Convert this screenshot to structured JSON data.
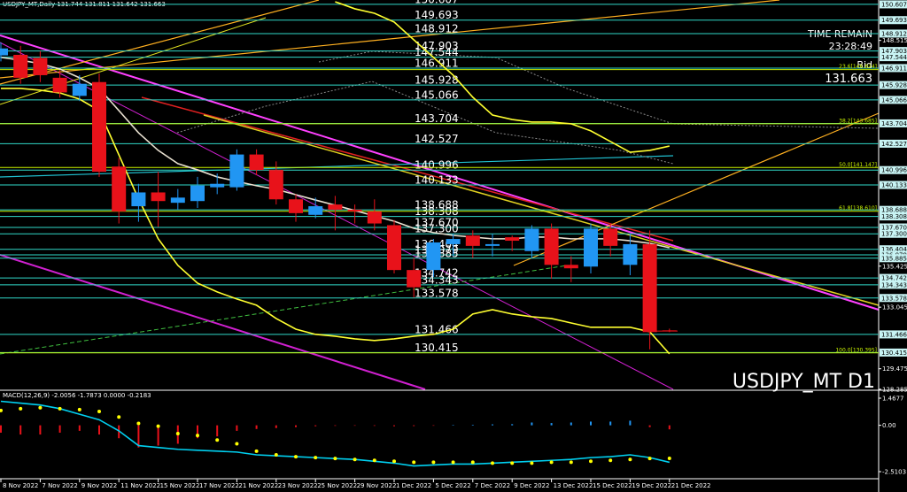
{
  "chart_data": [
    {
      "type": "candlestick",
      "title": "USDJPY_MT,Daily  131.744 131.811 131.642 131.663",
      "watermark": "USDJPY_MT D1",
      "timer_label": "TIME REMAIN",
      "timer": "23:28:49",
      "bid_label": "Bid",
      "bid": 131.663,
      "categories": [
        "8 Nov 2022",
        null,
        "7 Nov 2022",
        null,
        "9 Nov 2022",
        null,
        "11 Nov 2022",
        null,
        "15 Nov 2022",
        null,
        "17 Nov 2022",
        null,
        "21 Nov 2022",
        null,
        "23 Nov 2022",
        null,
        "25 Nov 2022",
        null,
        "29 Nov 2022",
        null,
        "1 Dec 2022",
        null,
        "5 Dec 2022",
        null,
        "7 Dec 2022",
        null,
        "9 Dec 2022",
        null,
        "13 Dec 2022",
        null,
        "15 Dec 2022",
        null,
        "19 Dec 2022",
        null,
        "21 Dec 2022"
      ],
      "open": [
        147.65,
        147.68,
        147.5,
        146.35,
        145.3,
        146.1,
        141.2,
        138.9,
        139.7,
        139.1,
        139.2,
        140.0,
        140.0,
        141.9,
        141.0,
        139.3,
        138.4,
        139.0,
        138.7,
        138.6,
        137.8,
        135.2,
        135.2,
        136.7,
        137.2,
        136.6,
        137.1,
        136.3,
        137.6,
        135.5,
        135.4,
        137.6,
        135.5,
        136.7,
        131.7
      ],
      "high": [
        148.4,
        148.2,
        147.9,
        146.8,
        146.5,
        146.6,
        141.7,
        140.2,
        140.9,
        139.9,
        140.6,
        140.8,
        142.2,
        142.2,
        141.5,
        139.6,
        139.4,
        139.5,
        139.0,
        139.3,
        138.1,
        135.9,
        137.0,
        137.3,
        137.5,
        137.3,
        137.2,
        137.8,
        137.9,
        136.0,
        137.9,
        137.9,
        137.3,
        137.5,
        131.8
      ],
      "low": [
        147.3,
        146.0,
        146.1,
        145.2,
        145.0,
        140.6,
        137.9,
        138.0,
        137.7,
        138.7,
        138.8,
        139.6,
        139.8,
        140.7,
        139.0,
        138.0,
        138.2,
        137.5,
        137.9,
        137.5,
        135.0,
        133.6,
        134.8,
        136.0,
        135.9,
        136.0,
        136.3,
        135.9,
        134.7,
        134.5,
        135.0,
        136.0,
        134.9,
        130.6,
        131.6
      ],
      "close": [
        148.05,
        146.35,
        146.5,
        145.5,
        146.0,
        140.9,
        138.6,
        139.7,
        139.2,
        139.4,
        140.1,
        140.2,
        141.9,
        141.0,
        139.3,
        138.5,
        138.9,
        138.7,
        138.6,
        137.9,
        135.2,
        134.2,
        136.8,
        137.0,
        136.6,
        136.7,
        136.9,
        137.6,
        135.5,
        135.3,
        137.6,
        136.6,
        136.7,
        131.6,
        131.66
      ],
      "up_color": "#2196f3",
      "down_color": "#e8121a",
      "overlays": [
        {
          "color": "#ffff30",
          "values": [
            null,
            null,
            null,
            null,
            null,
            null,
            null,
            null,
            null,
            null,
            null,
            null,
            null,
            null,
            null,
            null,
            null,
            150.76,
            150.35,
            150.09,
            149.58,
            148.55,
            147.53,
            146.5,
            145.22,
            144.19,
            143.93,
            143.78,
            143.78,
            143.68,
            143.27,
            142.65,
            142.03,
            142.14,
            142.39
          ]
        },
        {
          "color": "#e8e0d0",
          "values": [
            147.53,
            147.37,
            147.17,
            146.86,
            146.35,
            145.73,
            144.45,
            143.16,
            142.14,
            141.37,
            141.01,
            140.6,
            140.34,
            140.09,
            139.88,
            139.57,
            139.26,
            138.96,
            138.65,
            138.34,
            138.03,
            137.62,
            137.37,
            137.21,
            137.11,
            137.01,
            137.01,
            137.11,
            137.11,
            137.01,
            137.01,
            137.01,
            136.9,
            136.75,
            136.49
          ]
        },
        {
          "color": "#ffff30",
          "values": [
            145.73,
            145.73,
            145.63,
            145.47,
            145.11,
            144.45,
            141.88,
            139.32,
            137.01,
            135.47,
            134.44,
            133.93,
            133.52,
            133.16,
            132.39,
            131.77,
            131.47,
            131.36,
            131.21,
            131.11,
            131.21,
            131.36,
            131.47,
            131.77,
            132.65,
            132.9,
            132.65,
            132.49,
            132.39,
            132.13,
            131.88,
            131.88,
            131.88,
            131.62,
            130.34
          ]
        }
      ],
      "ylim": [
        128.28,
        150.86
      ],
      "yticks": [
        148.515,
        135.425,
        133.045,
        129.475,
        128.285
      ],
      "level_color": "#30d8c8",
      "levels": [
        150.607,
        149.693,
        148.912,
        147.903,
        147.544,
        146.911,
        145.928,
        145.066,
        143.704,
        142.527,
        140.996,
        140.133,
        138.688,
        138.308,
        {
          "value": 137.67,
          "label": "137.670"
        },
        {
          "value": 137.3,
          "label": "137.300"
        },
        136.404,
        136.079,
        135.885,
        134.742,
        134.343,
        133.578,
        131.466,
        130.415
      ],
      "fib_color": "#c8f000",
      "fib": [
        {
          "value": 146.824,
          "label": "23.6[146.824]"
        },
        {
          "value": 143.685,
          "label": "38.2[143.685]"
        },
        {
          "value": 141.147,
          "label": "50.0[141.147]"
        },
        {
          "value": 138.61,
          "label": "61.8[138.610]"
        },
        {
          "value": 130.395,
          "label": "100.0[130.395]"
        }
      ]
    },
    {
      "type": "macd",
      "title": "MACD(12,26,9) -2.0056 -1.7873 0.0000 -0.2183",
      "histogram": {
        "color": "#e8121a",
        "positive_color": "#2196f3",
        "values": [
          -0.4,
          -0.5,
          -0.5,
          -0.4,
          -0.3,
          -0.5,
          -0.7,
          -1.2,
          -1.1,
          -1.0,
          -0.7,
          -0.6,
          -0.3,
          -0.2,
          -0.15,
          -0.1,
          -0.05,
          -0.03,
          -0.02,
          -0.03,
          -0.05,
          -0.04,
          -0.02,
          0.02,
          0.03,
          0.05,
          0.06,
          0.15,
          0.12,
          0.15,
          0.2,
          0.2,
          0.25,
          -0.1,
          -0.22
        ]
      },
      "signal": {
        "color": "#ffff00",
        "values": [
          0.8,
          0.9,
          0.95,
          0.9,
          0.85,
          0.75,
          0.45,
          0.1,
          -0.05,
          -0.45,
          -0.55,
          -0.8,
          -1.0,
          -1.4,
          -1.6,
          -1.7,
          -1.75,
          -1.8,
          -1.85,
          -1.9,
          -1.95,
          -2.0,
          -2.0,
          -2.0,
          -2.0,
          -2.05,
          -2.05,
          -2.05,
          -2.0,
          -2.0,
          -1.95,
          -1.9,
          -1.85,
          -1.8,
          -1.79
        ]
      },
      "macd": {
        "color": "#00d0f0",
        "values": [
          1.3,
          1.2,
          1.1,
          0.9,
          0.6,
          0.3,
          -0.3,
          -1.1,
          -1.2,
          -1.3,
          -1.35,
          -1.4,
          -1.45,
          -1.6,
          -1.65,
          -1.7,
          -1.75,
          -1.8,
          -1.85,
          -1.95,
          -2.05,
          -2.2,
          -2.15,
          -2.1,
          -2.1,
          -2.05,
          -2.0,
          -1.95,
          -1.9,
          -1.85,
          -1.75,
          -1.7,
          -1.6,
          -1.75,
          -2.0056
        ]
      },
      "ylim": [
        -2.846,
        1.803
      ],
      "yticks": [
        1.4677,
        {
          "value": 0,
          "label": "0.00"
        },
        -2.5103
      ]
    }
  ]
}
